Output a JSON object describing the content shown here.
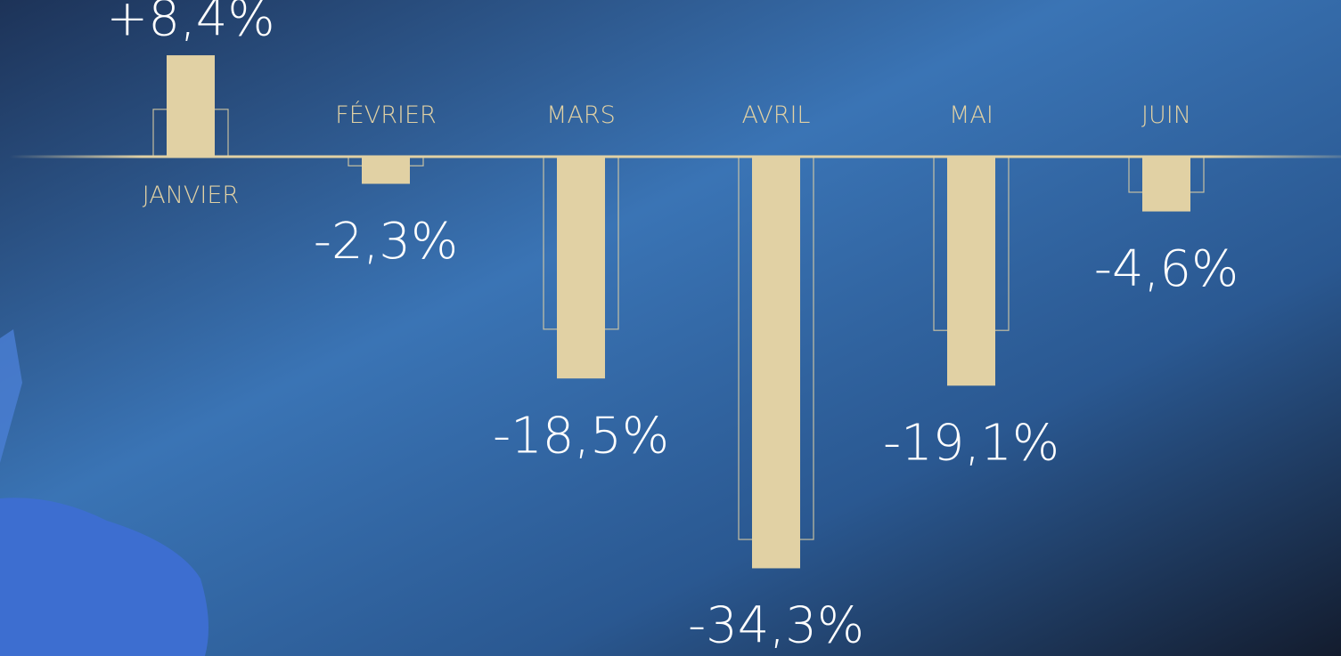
{
  "chart_data": {
    "type": "bar",
    "categories": [
      "JANVIER",
      "FÉVRIER",
      "MARS",
      "AVRIL",
      "MAI",
      "JUIN"
    ],
    "series": [
      {
        "color": "#e1d1a4",
        "values": [
          8.4,
          -2.3,
          -18.5,
          -34.3,
          -19.1,
          -4.6
        ],
        "value_labels": [
          "+8,4%",
          "-2,3%",
          "-18,5%",
          "-34,3%",
          "-19,1%",
          "-4,6%"
        ]
      },
      {
        "color": "#e1d1a4",
        "values": [
          3.9,
          -0.8,
          -14.4,
          -31.9,
          -14.5,
          -3.0
        ]
      }
    ],
    "ylim": [
      -41.6,
      13
    ]
  }
}
